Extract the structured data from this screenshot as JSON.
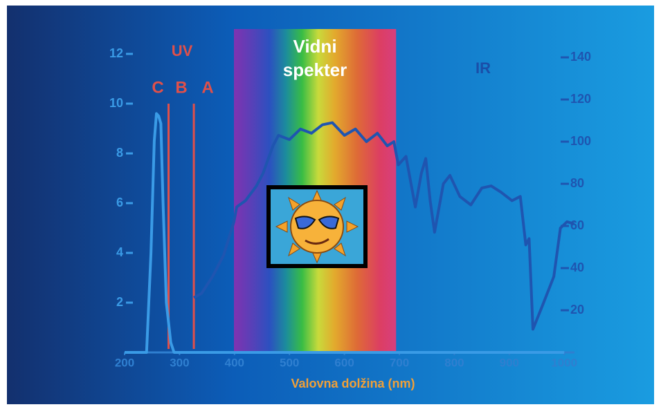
{
  "chart_data": {
    "type": "line",
    "labels": {
      "uv": "UV",
      "c": "C",
      "b": "B",
      "a": "A",
      "visible": "Vidni spekter",
      "ir": "IR"
    },
    "x_label": "Valovna dolžina (nm)",
    "xlim": [
      200,
      1040
    ],
    "xticks": [
      200,
      300,
      400,
      500,
      600,
      700,
      800,
      900,
      1000
    ],
    "ylim": [
      0,
      12
    ],
    "yticks": [
      2,
      4,
      6,
      8,
      10,
      12
    ],
    "y2lim": [
      0,
      140
    ],
    "y2ticks": [
      20,
      40,
      60,
      80,
      100,
      120,
      140
    ],
    "uv_boundaries": [
      280,
      326
    ],
    "visible_range": [
      399,
      694
    ],
    "series": [
      {
        "color": "#3a9be6",
        "x": [
          200,
          240,
          248,
          254,
          258,
          262,
          266,
          270,
          276,
          284,
          290,
          300,
          400,
          500,
          600,
          700,
          800,
          900,
          1000
        ],
        "values": [
          0,
          0,
          4,
          8.5,
          9.6,
          9.5,
          9.2,
          6,
          2,
          0.4,
          0,
          0,
          0,
          0,
          0,
          0,
          0,
          0,
          0
        ]
      },
      {
        "color": "#1f55b0",
        "axis": "y2",
        "x": [
          326,
          340,
          360,
          380,
          399,
          404,
          420,
          440,
          452,
          470,
          480,
          500,
          520,
          540,
          560,
          578,
          600,
          620,
          640,
          660,
          678,
          690,
          698,
          712,
          729,
          740,
          748,
          756,
          764,
          780,
          792,
          810,
          830,
          850,
          867,
          885,
          905,
          920,
          930,
          936,
          943,
          960,
          981,
          993,
          1005,
          1018
        ],
        "values": [
          26,
          28,
          36,
          46,
          62,
          69,
          72,
          79,
          85,
          98,
          103,
          101,
          106,
          104,
          108,
          109,
          103,
          106,
          100,
          104,
          98,
          100,
          89,
          93,
          69,
          85,
          92,
          72,
          57,
          80,
          84,
          74,
          70,
          78,
          79,
          76,
          72,
          74,
          51,
          54,
          11,
          22,
          36,
          59,
          62,
          61
        ]
      }
    ]
  }
}
